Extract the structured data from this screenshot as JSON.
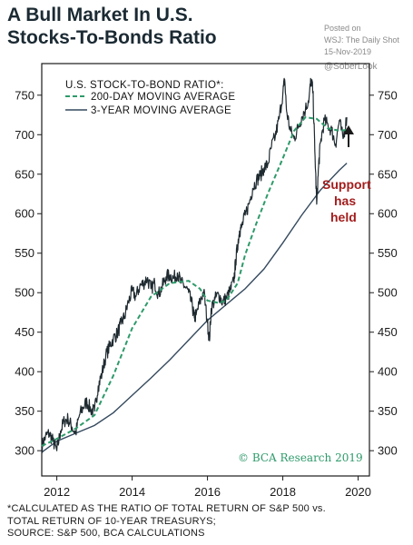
{
  "header": {
    "title_line1": "A Bull Market In U.S.",
    "title_line2": "Stocks-To-Bonds Ratio",
    "posted_line1": "Posted on",
    "posted_line2": "WSJ: The Daily Shot",
    "posted_line3": "15-Nov-2019",
    "handle": "@SoberLook"
  },
  "colors": {
    "frame": "#1a1a1a",
    "ratio_line": "#1e2a30",
    "ma200": "#2e9a6a",
    "ma3y": "#34495e",
    "annotation": "#a31d1d",
    "source_logo": "#2e9a6a"
  },
  "chart_data": {
    "type": "line",
    "title": "A Bull Market In U.S. Stocks-To-Bonds Ratio",
    "legend_placement": "top-left",
    "legend_title": "U.S. STOCK-TO-BOND RATIO*:",
    "xlim": [
      2011.6,
      2020.3
    ],
    "ylim": [
      268,
      790
    ],
    "x_ticks": [
      2012,
      2014,
      2016,
      2018,
      2020
    ],
    "y_ticks": [
      300,
      350,
      400,
      450,
      500,
      550,
      600,
      650,
      700,
      750
    ],
    "grid": false,
    "series": [
      {
        "name": "U.S. STOCK-TO-BOND RATIO*",
        "style": "solid-noisy",
        "x": [
          2011.6,
          2011.7,
          2011.8,
          2011.9,
          2012.0,
          2012.1,
          2012.2,
          2012.3,
          2012.4,
          2012.5,
          2012.6,
          2012.7,
          2012.8,
          2012.9,
          2013.0,
          2013.1,
          2013.2,
          2013.3,
          2013.4,
          2013.5,
          2013.6,
          2013.7,
          2013.8,
          2013.9,
          2014.0,
          2014.1,
          2014.2,
          2014.3,
          2014.4,
          2014.5,
          2014.6,
          2014.7,
          2014.8,
          2014.9,
          2015.0,
          2015.1,
          2015.2,
          2015.3,
          2015.4,
          2015.5,
          2015.6,
          2015.65,
          2015.7,
          2015.8,
          2015.9,
          2016.0,
          2016.05,
          2016.1,
          2016.2,
          2016.3,
          2016.4,
          2016.5,
          2016.6,
          2016.7,
          2016.75,
          2016.8,
          2016.85,
          2016.9,
          2017.0,
          2017.1,
          2017.2,
          2017.3,
          2017.4,
          2017.5,
          2017.6,
          2017.7,
          2017.8,
          2017.9,
          2018.0,
          2018.05,
          2018.1,
          2018.2,
          2018.3,
          2018.4,
          2018.5,
          2018.6,
          2018.7,
          2018.75,
          2018.8,
          2018.85,
          2018.9,
          2018.95,
          2019.0,
          2019.1,
          2019.2,
          2019.3,
          2019.4,
          2019.5,
          2019.6,
          2019.7
        ],
        "values": [
          305,
          318,
          322,
          312,
          300,
          325,
          338,
          340,
          330,
          322,
          345,
          355,
          362,
          352,
          350,
          382,
          398,
          420,
          432,
          442,
          448,
          460,
          470,
          488,
          502,
          495,
          508,
          512,
          518,
          505,
          512,
          498,
          508,
          520,
          522,
          518,
          525,
          512,
          508,
          500,
          482,
          468,
          472,
          488,
          502,
          462,
          440,
          480,
          492,
          498,
          488,
          493,
          502,
          515,
          540,
          560,
          578,
          582,
          598,
          612,
          632,
          642,
          648,
          658,
          662,
          685,
          698,
          720,
          752,
          770,
          730,
          705,
          695,
          708,
          722,
          732,
          748,
          770,
          755,
          680,
          612,
          660,
          690,
          718,
          712,
          705,
          688,
          718,
          695,
          722
        ]
      },
      {
        "name": "200-DAY MOVING AVERAGE",
        "style": "dashed",
        "x": [
          2011.6,
          2012.0,
          2012.5,
          2013.0,
          2013.5,
          2014.0,
          2014.5,
          2015.0,
          2015.5,
          2015.8,
          2016.0,
          2016.3,
          2016.5,
          2016.8,
          2017.0,
          2017.3,
          2017.6,
          2018.0,
          2018.3,
          2018.6,
          2018.9,
          2019.2,
          2019.5,
          2019.7
        ],
        "values": [
          306,
          315,
          328,
          345,
          395,
          455,
          495,
          512,
          515,
          505,
          490,
          487,
          490,
          512,
          548,
          588,
          625,
          670,
          705,
          722,
          720,
          708,
          705,
          706
        ]
      },
      {
        "name": "3-YEAR MOVING AVERAGE",
        "style": "solid",
        "x": [
          2011.6,
          2012.0,
          2012.5,
          2013.0,
          2013.5,
          2014.0,
          2014.5,
          2015.0,
          2015.5,
          2016.0,
          2016.5,
          2017.0,
          2017.5,
          2018.0,
          2018.5,
          2019.0,
          2019.5,
          2019.7
        ],
        "values": [
          298,
          312,
          322,
          332,
          348,
          370,
          392,
          415,
          440,
          465,
          485,
          505,
          530,
          563,
          598,
          630,
          655,
          664
        ]
      }
    ],
    "annotations": {
      "support_line1": "Support",
      "support_line2": "has",
      "support_line3": "held",
      "source_logo": "© BCA Research 2019"
    }
  },
  "footnote": {
    "line1": "*CALCULATED AS THE RATIO OF TOTAL RETURN OF S&P 500 vs.",
    "line2": "TOTAL RETURN OF 10-YEAR TREASURYS;",
    "line3": "SOURCE: S&P 500, BCA CALCULATIONS"
  }
}
